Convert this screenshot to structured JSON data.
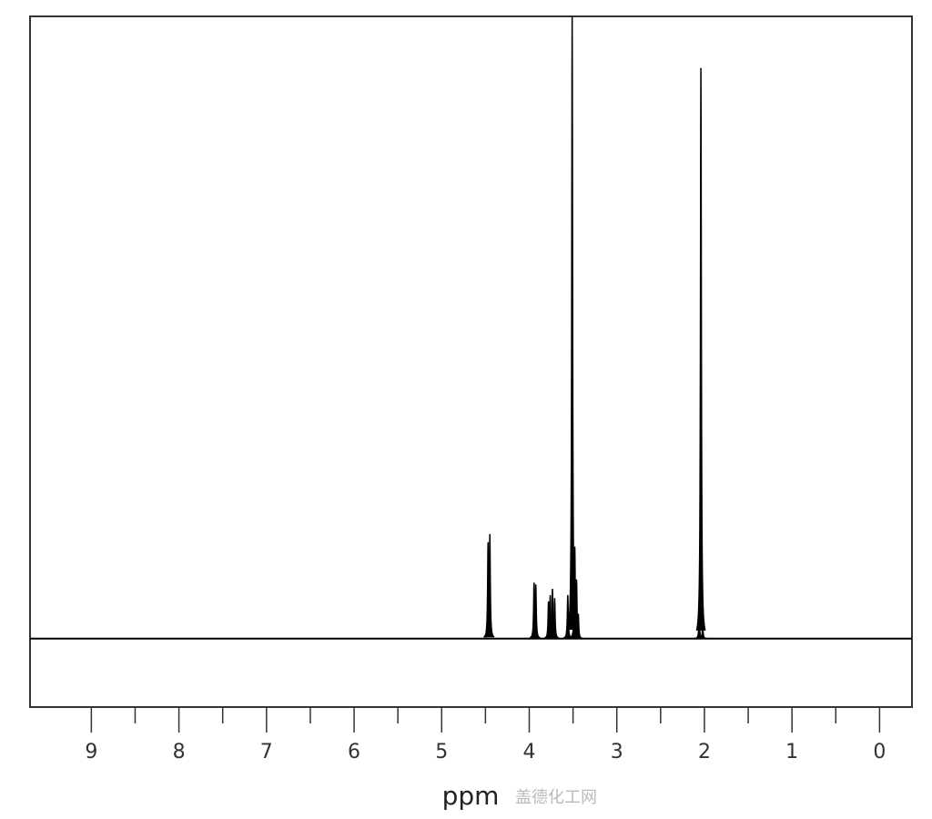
{
  "chart_data": {
    "type": "line",
    "title": "",
    "xlabel": "ppm",
    "ylabel": "",
    "xlim": [
      9.7,
      -0.37
    ],
    "x_reversed": true,
    "ylim": [
      -0.11,
      1.0
    ],
    "grid": false,
    "major_ticks": [
      9,
      8,
      7,
      6,
      5,
      4,
      3,
      2,
      1,
      0
    ],
    "minor_ticks": [
      8.5,
      7.5,
      6.5,
      5.5,
      4.5,
      3.5,
      2.5,
      1.5,
      0.5
    ],
    "tick_labels": [
      "9",
      "8",
      "7",
      "6",
      "5",
      "4",
      "3",
      "2",
      "1",
      "0"
    ],
    "line_color": "#000000",
    "peaks": [
      {
        "ppm": 4.47,
        "intensity": 0.155
      },
      {
        "ppm": 4.45,
        "intensity": 0.168
      },
      {
        "ppm": 3.945,
        "intensity": 0.09
      },
      {
        "ppm": 3.925,
        "intensity": 0.087
      },
      {
        "ppm": 3.78,
        "intensity": 0.06
      },
      {
        "ppm": 3.76,
        "intensity": 0.07
      },
      {
        "ppm": 3.735,
        "intensity": 0.08
      },
      {
        "ppm": 3.71,
        "intensity": 0.065
      },
      {
        "ppm": 3.56,
        "intensity": 0.07
      },
      {
        "ppm": 3.51,
        "intensity": 1.0
      },
      {
        "ppm": 3.48,
        "intensity": 0.148
      },
      {
        "ppm": 3.46,
        "intensity": 0.095
      },
      {
        "ppm": 3.44,
        "intensity": 0.04
      },
      {
        "ppm": 2.06,
        "intensity": 0.03
      },
      {
        "ppm": 2.04,
        "intensity": 0.917
      },
      {
        "ppm": 2.02,
        "intensity": 0.02
      }
    ]
  },
  "watermark": "盖德化工网"
}
